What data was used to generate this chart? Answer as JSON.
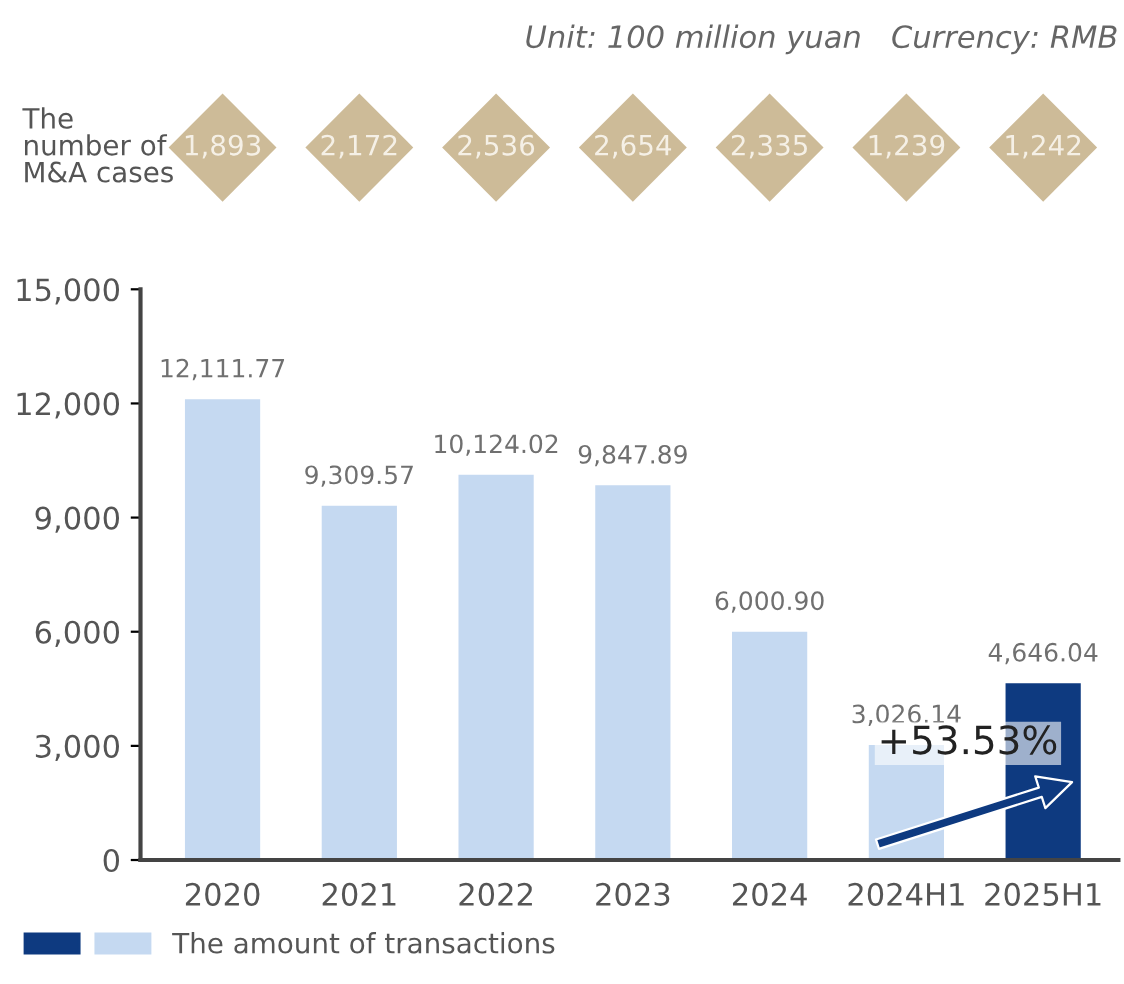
{
  "chart_data": {
    "type": "bar",
    "categories": [
      "2020",
      "2021",
      "2022",
      "2023",
      "2024",
      "2024H1",
      "2025H1"
    ],
    "series": [
      {
        "name": "The amount of transactions",
        "colors": [
          "#c5d9f1",
          "#c5d9f1",
          "#c5d9f1",
          "#c5d9f1",
          "#c5d9f1",
          "#c5d9f1",
          "#0e3a80"
        ],
        "values": [
          12111.77,
          9309.57,
          10124.02,
          9847.89,
          6000.9,
          3026.14,
          4646.04
        ],
        "value_labels": [
          "12,111.77",
          "9,309.57",
          "10,124.02",
          "9,847.89",
          "6,000.90",
          "3,026.14",
          "4,646.04"
        ]
      }
    ],
    "ylim": [
      0,
      15000
    ],
    "yticks": [
      {
        "value": 0,
        "label": "0"
      },
      {
        "value": 3000,
        "label": "3,000"
      },
      {
        "value": 6000,
        "label": "6,000"
      },
      {
        "value": 9000,
        "label": "9,000"
      },
      {
        "value": 12000,
        "label": "12,000"
      },
      {
        "value": 15000,
        "label": "15,000"
      }
    ],
    "grid": false,
    "legend": "bottom left",
    "annotations": [
      "Unit: 100 million yuan   Currency: RMB",
      "The\nnumber of\nM&A cases",
      "1,893",
      "2,172",
      "2,536",
      "2,654",
      "2,335",
      "1,239",
      "1,242",
      {
        "text": "+53.53%",
        "x": "2025H1",
        "y": 4646.04
      }
    ]
  }
}
